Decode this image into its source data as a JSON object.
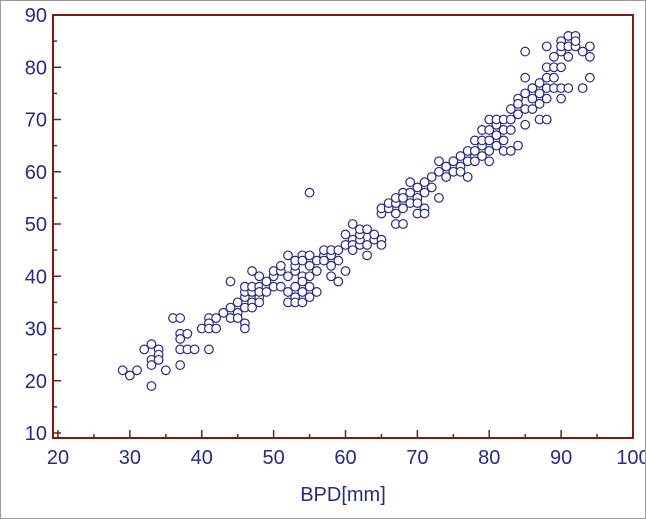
{
  "chart_data": {
    "type": "scatter",
    "title": "",
    "xlabel": "BPD[mm]",
    "ylabel": "",
    "xlim": [
      20,
      100
    ],
    "ylim": [
      10,
      90
    ],
    "x_ticks": [
      20,
      30,
      40,
      50,
      60,
      70,
      80,
      90,
      100
    ],
    "y_ticks": [
      10,
      20,
      30,
      40,
      50,
      60,
      70,
      80,
      90
    ],
    "grid": false,
    "colors": {
      "frame": "#7a1a12",
      "tick_text": "#2a2a82",
      "marker": "#2a2a82"
    },
    "series": [
      {
        "marker": "open-circle",
        "points": [
          [
            29,
            22
          ],
          [
            30,
            21
          ],
          [
            31,
            22
          ],
          [
            32,
            26
          ],
          [
            33,
            27
          ],
          [
            33,
            24
          ],
          [
            33,
            23
          ],
          [
            33,
            19
          ],
          [
            34,
            26
          ],
          [
            34,
            25
          ],
          [
            34,
            24
          ],
          [
            35,
            22
          ],
          [
            36,
            32
          ],
          [
            37,
            32
          ],
          [
            37,
            29
          ],
          [
            37,
            28
          ],
          [
            37,
            26
          ],
          [
            37,
            23
          ],
          [
            38,
            29
          ],
          [
            38,
            26
          ],
          [
            39,
            26
          ],
          [
            40,
            30
          ],
          [
            41,
            32
          ],
          [
            41,
            31
          ],
          [
            41,
            30
          ],
          [
            41,
            26
          ],
          [
            42,
            30
          ],
          [
            42,
            32
          ],
          [
            43,
            33
          ],
          [
            44,
            34
          ],
          [
            44,
            32
          ],
          [
            44,
            39
          ],
          [
            45,
            33
          ],
          [
            45,
            32
          ],
          [
            45,
            35
          ],
          [
            46,
            34
          ],
          [
            46,
            36
          ],
          [
            46,
            37
          ],
          [
            46,
            38
          ],
          [
            46,
            31
          ],
          [
            46,
            30
          ],
          [
            47,
            35
          ],
          [
            47,
            37
          ],
          [
            47,
            41
          ],
          [
            47,
            38
          ],
          [
            47,
            34
          ],
          [
            48,
            36
          ],
          [
            48,
            38
          ],
          [
            48,
            37
          ],
          [
            48,
            40
          ],
          [
            48,
            35
          ],
          [
            49,
            38
          ],
          [
            49,
            39
          ],
          [
            49,
            37
          ],
          [
            50,
            38
          ],
          [
            50,
            40
          ],
          [
            50,
            41
          ],
          [
            51,
            41
          ],
          [
            51,
            38
          ],
          [
            51,
            42
          ],
          [
            52,
            40
          ],
          [
            52,
            44
          ],
          [
            52,
            37
          ],
          [
            52,
            35
          ],
          [
            53,
            38
          ],
          [
            53,
            41
          ],
          [
            53,
            42
          ],
          [
            53,
            43
          ],
          [
            53,
            36
          ],
          [
            53,
            35
          ],
          [
            54,
            44
          ],
          [
            54,
            40
          ],
          [
            54,
            43
          ],
          [
            54,
            39
          ],
          [
            54,
            37
          ],
          [
            54,
            35
          ],
          [
            55,
            42
          ],
          [
            55,
            40
          ],
          [
            55,
            44
          ],
          [
            55,
            38
          ],
          [
            55,
            36
          ],
          [
            55,
            56
          ],
          [
            56,
            43
          ],
          [
            56,
            41
          ],
          [
            56,
            37
          ],
          [
            57,
            44
          ],
          [
            57,
            45
          ],
          [
            57,
            43
          ],
          [
            58,
            44
          ],
          [
            58,
            45
          ],
          [
            58,
            42
          ],
          [
            58,
            40
          ],
          [
            59,
            45
          ],
          [
            59,
            43
          ],
          [
            59,
            39
          ],
          [
            60,
            46
          ],
          [
            60,
            48
          ],
          [
            60,
            41
          ],
          [
            61,
            47
          ],
          [
            61,
            46
          ],
          [
            61,
            50
          ],
          [
            61,
            45
          ],
          [
            62,
            46
          ],
          [
            62,
            47
          ],
          [
            62,
            48
          ],
          [
            62,
            49
          ],
          [
            63,
            46
          ],
          [
            63,
            44
          ],
          [
            63,
            49
          ],
          [
            64,
            47
          ],
          [
            64,
            48
          ],
          [
            65,
            52
          ],
          [
            65,
            53
          ],
          [
            65,
            47
          ],
          [
            65,
            46
          ],
          [
            66,
            53
          ],
          [
            66,
            54
          ],
          [
            67,
            54
          ],
          [
            67,
            55
          ],
          [
            67,
            52
          ],
          [
            67,
            50
          ],
          [
            68,
            56
          ],
          [
            68,
            55
          ],
          [
            68,
            53
          ],
          [
            68,
            50
          ],
          [
            69,
            54
          ],
          [
            69,
            56
          ],
          [
            69,
            58
          ],
          [
            70,
            55
          ],
          [
            70,
            57
          ],
          [
            70,
            54
          ],
          [
            70,
            52
          ],
          [
            71,
            56
          ],
          [
            71,
            58
          ],
          [
            71,
            53
          ],
          [
            71,
            52
          ],
          [
            72,
            57
          ],
          [
            72,
            59
          ],
          [
            73,
            60
          ],
          [
            73,
            62
          ],
          [
            73,
            55
          ],
          [
            74,
            61
          ],
          [
            74,
            59
          ],
          [
            75,
            60
          ],
          [
            75,
            62
          ],
          [
            76,
            61
          ],
          [
            76,
            63
          ],
          [
            76,
            60
          ],
          [
            77,
            64
          ],
          [
            77,
            62
          ],
          [
            77,
            59
          ],
          [
            78,
            63
          ],
          [
            78,
            64
          ],
          [
            78,
            66
          ],
          [
            78,
            62
          ],
          [
            79,
            65
          ],
          [
            79,
            66
          ],
          [
            79,
            68
          ],
          [
            79,
            63
          ],
          [
            80,
            66
          ],
          [
            80,
            68
          ],
          [
            80,
            70
          ],
          [
            80,
            64
          ],
          [
            80,
            62
          ],
          [
            81,
            67
          ],
          [
            81,
            69
          ],
          [
            81,
            70
          ],
          [
            81,
            65
          ],
          [
            82,
            68
          ],
          [
            82,
            70
          ],
          [
            82,
            66
          ],
          [
            82,
            64
          ],
          [
            83,
            70
          ],
          [
            83,
            72
          ],
          [
            83,
            68
          ],
          [
            83,
            64
          ],
          [
            84,
            71
          ],
          [
            84,
            74
          ],
          [
            84,
            73
          ],
          [
            84,
            65
          ],
          [
            85,
            72
          ],
          [
            85,
            75
          ],
          [
            85,
            78
          ],
          [
            85,
            69
          ],
          [
            85,
            83
          ],
          [
            86,
            74
          ],
          [
            86,
            76
          ],
          [
            86,
            72
          ],
          [
            87,
            75
          ],
          [
            87,
            77
          ],
          [
            87,
            73
          ],
          [
            87,
            70
          ],
          [
            88,
            76
          ],
          [
            88,
            78
          ],
          [
            88,
            80
          ],
          [
            88,
            84
          ],
          [
            88,
            74
          ],
          [
            88,
            70
          ],
          [
            89,
            78
          ],
          [
            89,
            80
          ],
          [
            89,
            82
          ],
          [
            89,
            76
          ],
          [
            90,
            80
          ],
          [
            90,
            83
          ],
          [
            90,
            85
          ],
          [
            90,
            84
          ],
          [
            90,
            76
          ],
          [
            90,
            74
          ],
          [
            91,
            82
          ],
          [
            91,
            84
          ],
          [
            91,
            86
          ],
          [
            91,
            76
          ],
          [
            92,
            84
          ],
          [
            92,
            86
          ],
          [
            92,
            85
          ],
          [
            93,
            83
          ],
          [
            93,
            76
          ],
          [
            94,
            84
          ],
          [
            94,
            82
          ],
          [
            94,
            78
          ]
        ]
      }
    ]
  }
}
